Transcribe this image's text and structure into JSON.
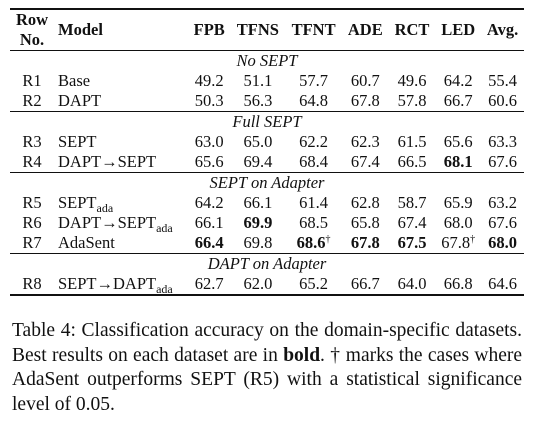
{
  "table": {
    "header": {
      "row": [
        "Row",
        "No."
      ],
      "model": "Model",
      "columns": [
        "FPB",
        "TFNS",
        "TFNT",
        "ADE",
        "RCT",
        "LED",
        "Avg."
      ]
    },
    "sections": [
      {
        "title": "No SEPT",
        "rows": [
          {
            "id": "R1",
            "model": "Base",
            "model_sub": "",
            "model_tail": "",
            "values": [
              "49.2",
              "51.1",
              "57.7",
              "60.7",
              "49.6",
              "64.2",
              "55.4"
            ],
            "bold": [],
            "dagger": []
          },
          {
            "id": "R2",
            "model": "DAPT",
            "model_sub": "",
            "model_tail": "",
            "values": [
              "50.3",
              "56.3",
              "64.8",
              "67.8",
              "57.8",
              "66.7",
              "60.6"
            ],
            "bold": [],
            "dagger": []
          }
        ]
      },
      {
        "title": "Full SEPT",
        "rows": [
          {
            "id": "R3",
            "model": "SEPT",
            "model_sub": "",
            "model_tail": "",
            "values": [
              "63.0",
              "65.0",
              "62.2",
              "62.3",
              "61.5",
              "65.6",
              "63.3"
            ],
            "bold": [],
            "dagger": []
          },
          {
            "id": "R4",
            "model": "DAPT→SEPT",
            "model_sub": "",
            "model_tail": "",
            "values": [
              "65.6",
              "69.4",
              "68.4",
              "67.4",
              "66.5",
              "68.1",
              "67.6"
            ],
            "bold": [
              5
            ],
            "dagger": []
          }
        ]
      },
      {
        "title": "SEPT on Adapter",
        "rows": [
          {
            "id": "R5",
            "model": "SEPT",
            "model_sub": "ada",
            "model_tail": "",
            "values": [
              "64.2",
              "66.1",
              "61.4",
              "62.8",
              "58.7",
              "65.9",
              "63.2"
            ],
            "bold": [],
            "dagger": []
          },
          {
            "id": "R6",
            "model": "DAPT→SEPT",
            "model_sub": "ada",
            "model_tail": "",
            "values": [
              "66.1",
              "69.9",
              "68.5",
              "65.8",
              "67.4",
              "68.0",
              "67.6"
            ],
            "bold": [
              1
            ],
            "dagger": []
          },
          {
            "id": "R7",
            "model": "AdaSent",
            "model_sub": "",
            "model_tail": "",
            "values": [
              "66.4",
              "69.8",
              "68.6",
              "67.8",
              "67.5",
              "67.8",
              "68.0"
            ],
            "bold": [
              0,
              2,
              3,
              4,
              6
            ],
            "dagger": [
              2,
              5
            ]
          }
        ]
      },
      {
        "title": "DAPT on Adapter",
        "rows": [
          {
            "id": "R8",
            "model": "SEPT→DAPT",
            "model_sub": "ada",
            "model_tail": "",
            "values": [
              "62.7",
              "62.0",
              "65.2",
              "66.7",
              "64.0",
              "66.8",
              "64.6"
            ],
            "bold": [],
            "dagger": []
          }
        ]
      }
    ],
    "dagger_symbol": "†"
  },
  "caption": {
    "label": "Table 4: Classification accuracy on the domain-specific datasets. Best results on each dataset are in ",
    "bold_word": "bold",
    "rest": ". † marks the cases where AdaSent outperforms SEPT (R5) with a statistical significance level of 0.05."
  }
}
